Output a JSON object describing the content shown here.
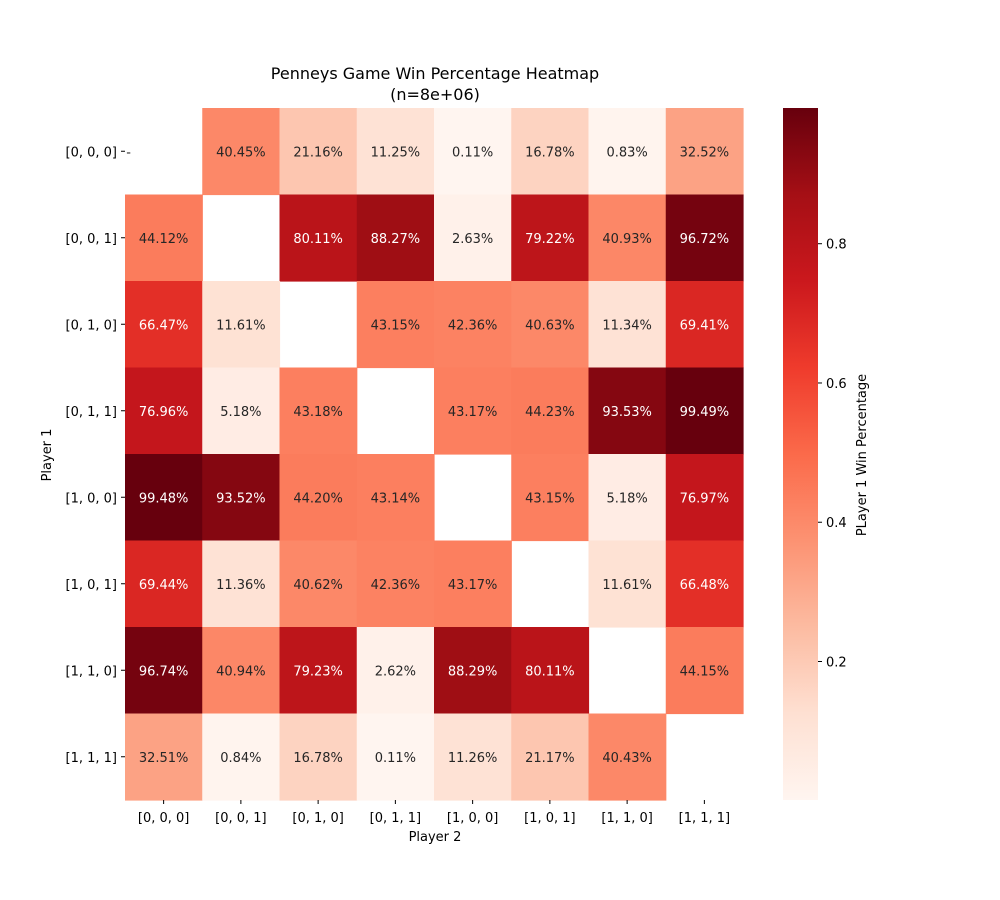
{
  "chart_data": {
    "type": "heatmap",
    "title": "Penneys Game Win Percentage Heatmap",
    "subtitle": "(n=8e+06)",
    "xlabel": "Player 2",
    "ylabel": "Player 1",
    "x_categories": [
      "[0, 0, 0]",
      "[0, 0, 1]",
      "[0, 1, 0]",
      "[0, 1, 1]",
      "[1, 0, 0]",
      "[1, 0, 1]",
      "[1, 1, 0]",
      "[1, 1, 1]"
    ],
    "y_categories": [
      "[0, 0, 0]",
      "[0, 0, 1]",
      "[0, 1, 0]",
      "[0, 1, 1]",
      "[1, 0, 0]",
      "[1, 0, 1]",
      "[1, 1, 0]",
      "[1, 1, 1]"
    ],
    "values": [
      [
        null,
        0.4045,
        0.2116,
        0.1125,
        0.0011,
        0.1678,
        0.0083,
        0.3252
      ],
      [
        0.4412,
        null,
        0.8011,
        0.8827,
        0.0263,
        0.7922,
        0.4093,
        0.9672
      ],
      [
        0.6647,
        0.1161,
        null,
        0.4315,
        0.4236,
        0.4063,
        0.1134,
        0.6941
      ],
      [
        0.7696,
        0.0518,
        0.4318,
        null,
        0.4317,
        0.4423,
        0.9353,
        0.9949
      ],
      [
        0.9948,
        0.9352,
        0.442,
        0.4314,
        null,
        0.4315,
        0.0518,
        0.7697
      ],
      [
        0.6944,
        0.1136,
        0.4062,
        0.4236,
        0.4317,
        null,
        0.1161,
        0.6648
      ],
      [
        0.9674,
        0.4094,
        0.7923,
        0.0262,
        0.8829,
        0.8011,
        null,
        0.4415
      ],
      [
        0.3251,
        0.0084,
        0.1678,
        0.0011,
        0.1126,
        0.2117,
        0.4043,
        null
      ]
    ],
    "annotations": [
      [
        "-",
        "40.45%",
        "21.16%",
        "11.25%",
        "0.11%",
        "16.78%",
        "0.83%",
        "32.52%"
      ],
      [
        "44.12%",
        "",
        "80.11%",
        "88.27%",
        "2.63%",
        "79.22%",
        "40.93%",
        "96.72%"
      ],
      [
        "66.47%",
        "11.61%",
        "",
        "43.15%",
        "42.36%",
        "40.63%",
        "11.34%",
        "69.41%"
      ],
      [
        "76.96%",
        "5.18%",
        "43.18%",
        "",
        "43.17%",
        "44.23%",
        "93.53%",
        "99.49%"
      ],
      [
        "99.48%",
        "93.52%",
        "44.20%",
        "43.14%",
        "",
        "43.15%",
        "5.18%",
        "76.97%"
      ],
      [
        "69.44%",
        "11.36%",
        "40.62%",
        "42.36%",
        "43.17%",
        "",
        "11.61%",
        "66.48%"
      ],
      [
        "96.74%",
        "40.94%",
        "79.23%",
        "2.62%",
        "88.29%",
        "80.11%",
        "",
        "44.15%"
      ],
      [
        "32.51%",
        "0.84%",
        "16.78%",
        "0.11%",
        "11.26%",
        "21.17%",
        "40.43%",
        ""
      ]
    ],
    "colormap": "Reds",
    "colorbar": {
      "label": "PLayer 1 Win Percentage",
      "range": [
        0.0011,
        0.9949
      ],
      "ticks": [
        0.2,
        0.4,
        0.6,
        0.8
      ],
      "tick_labels": [
        "0.2",
        "0.4",
        "0.6",
        "0.8"
      ]
    },
    "grid": false,
    "legend": "none"
  }
}
